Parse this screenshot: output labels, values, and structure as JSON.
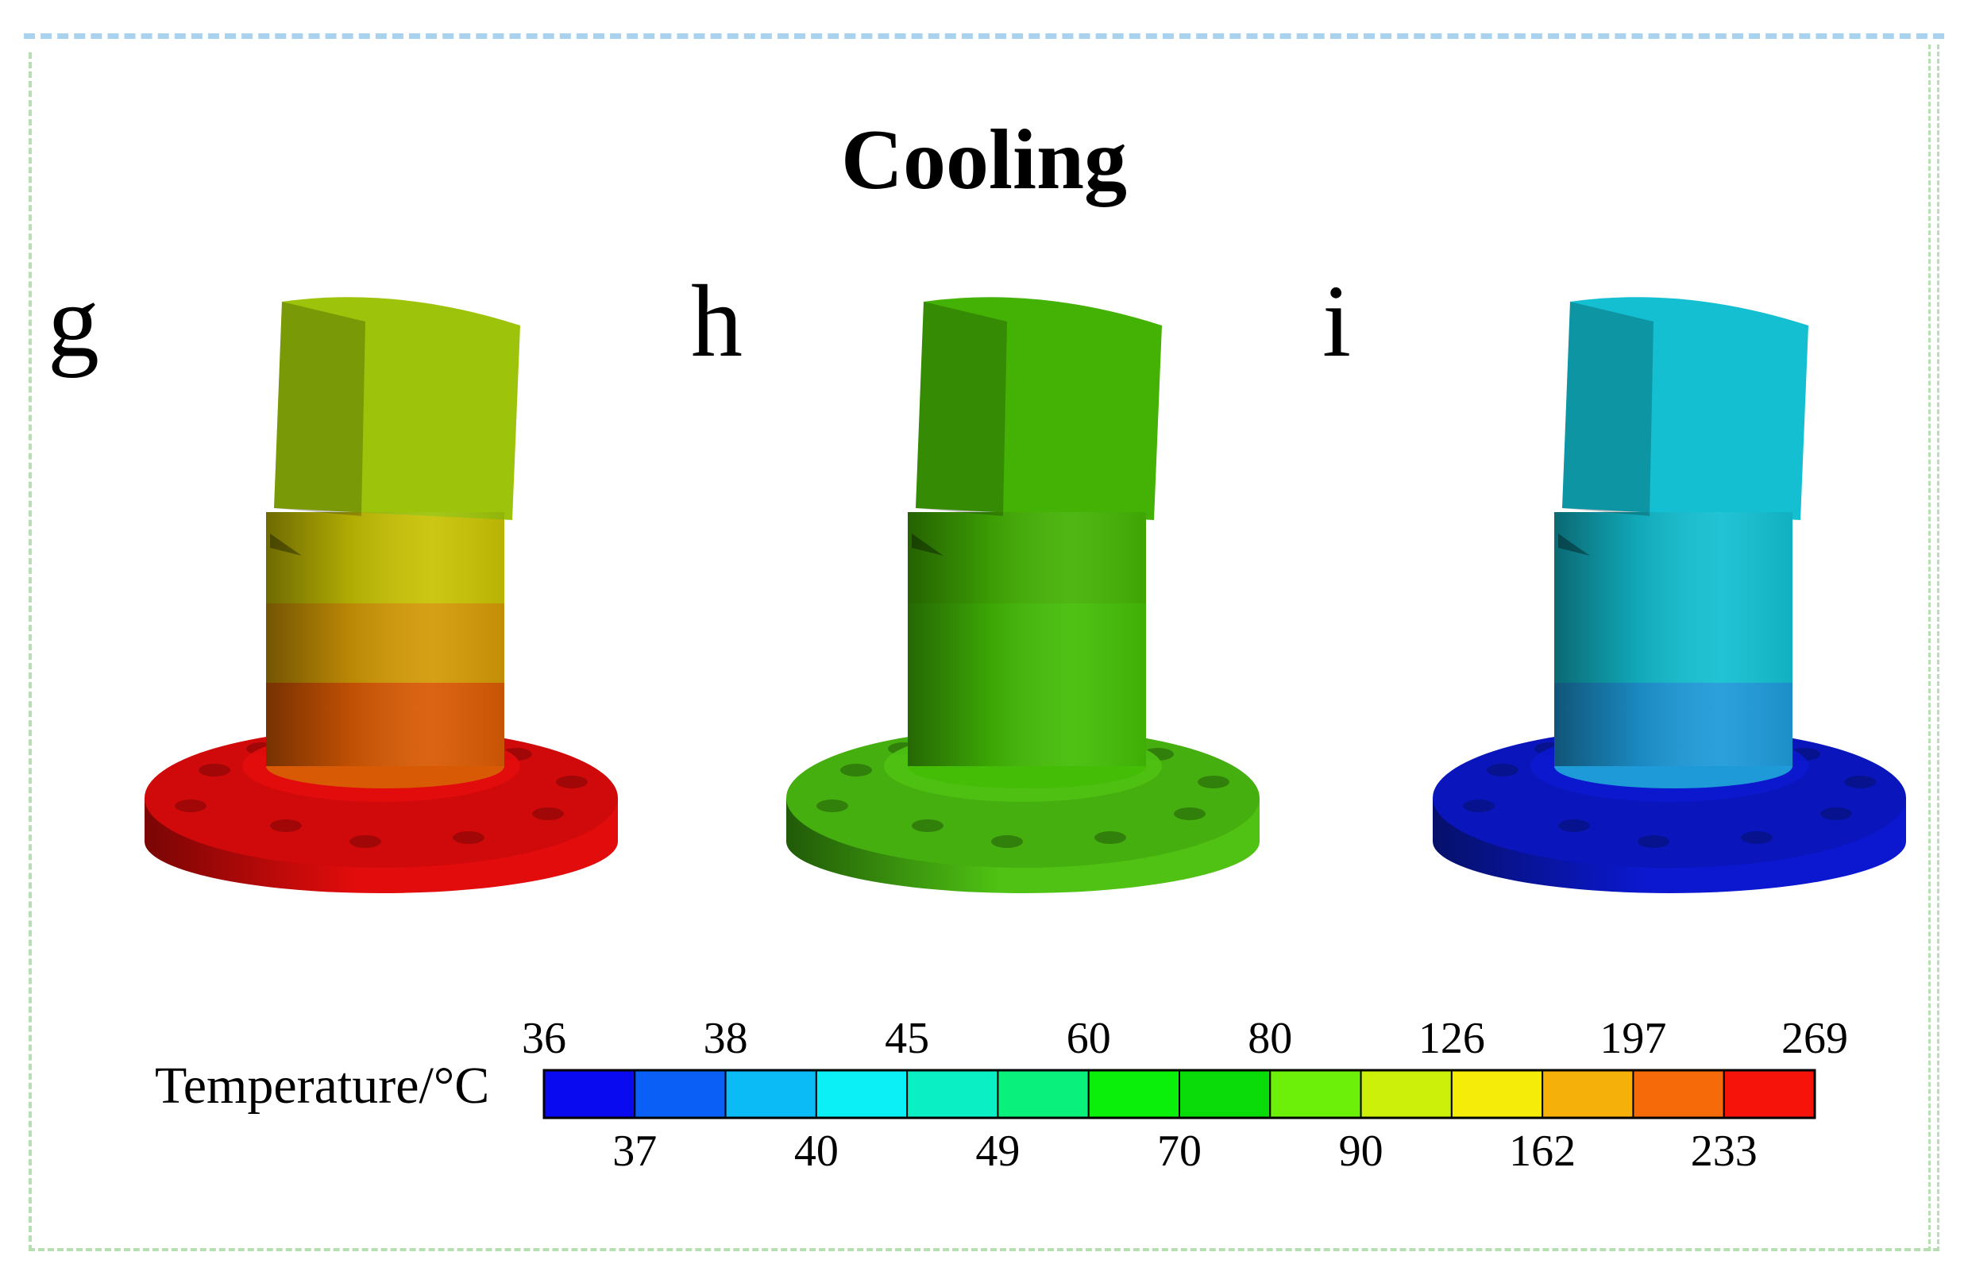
{
  "figure": {
    "title": "Cooling",
    "panels": [
      {
        "label": "g",
        "zones": {
          "cap": "#9dc40a",
          "band_upper": "#c8c204",
          "band_middle": "#d39a06",
          "band_lower": "#d85a04",
          "flange": "#e30c0c",
          "flange_shade": "#7a0505"
        }
      },
      {
        "label": "h",
        "zones": {
          "cap": "#44b204",
          "band_upper": "#44b204",
          "band_middle": "#44bd06",
          "band_lower": "#44bd06",
          "flange": "#4fc213",
          "flange_shade": "#215a08"
        }
      },
      {
        "label": "i",
        "zones": {
          "cap": "#13bfd1",
          "band_upper": "#13bfd1",
          "band_middle": "#13bfd1",
          "band_lower": "#1e9ad9",
          "flange": "#0b18cf",
          "flange_shade": "#06106a"
        }
      }
    ]
  },
  "legend": {
    "title": "Temperature/°C",
    "levels_top": [
      "36",
      "38",
      "45",
      "60",
      "80",
      "126",
      "197",
      "269"
    ],
    "levels_bottom": [
      "37",
      "40",
      "49",
      "70",
      "90",
      "162",
      "233"
    ],
    "colors": [
      "#0a0af0",
      "#0a60f6",
      "#0abbf6",
      "#0af0f6",
      "#0af0c4",
      "#0af07c",
      "#0af00a",
      "#0adc0a",
      "#6cf00a",
      "#ccf00a",
      "#f6ec0a",
      "#f6b00a",
      "#f66a0a",
      "#f6140a"
    ]
  }
}
